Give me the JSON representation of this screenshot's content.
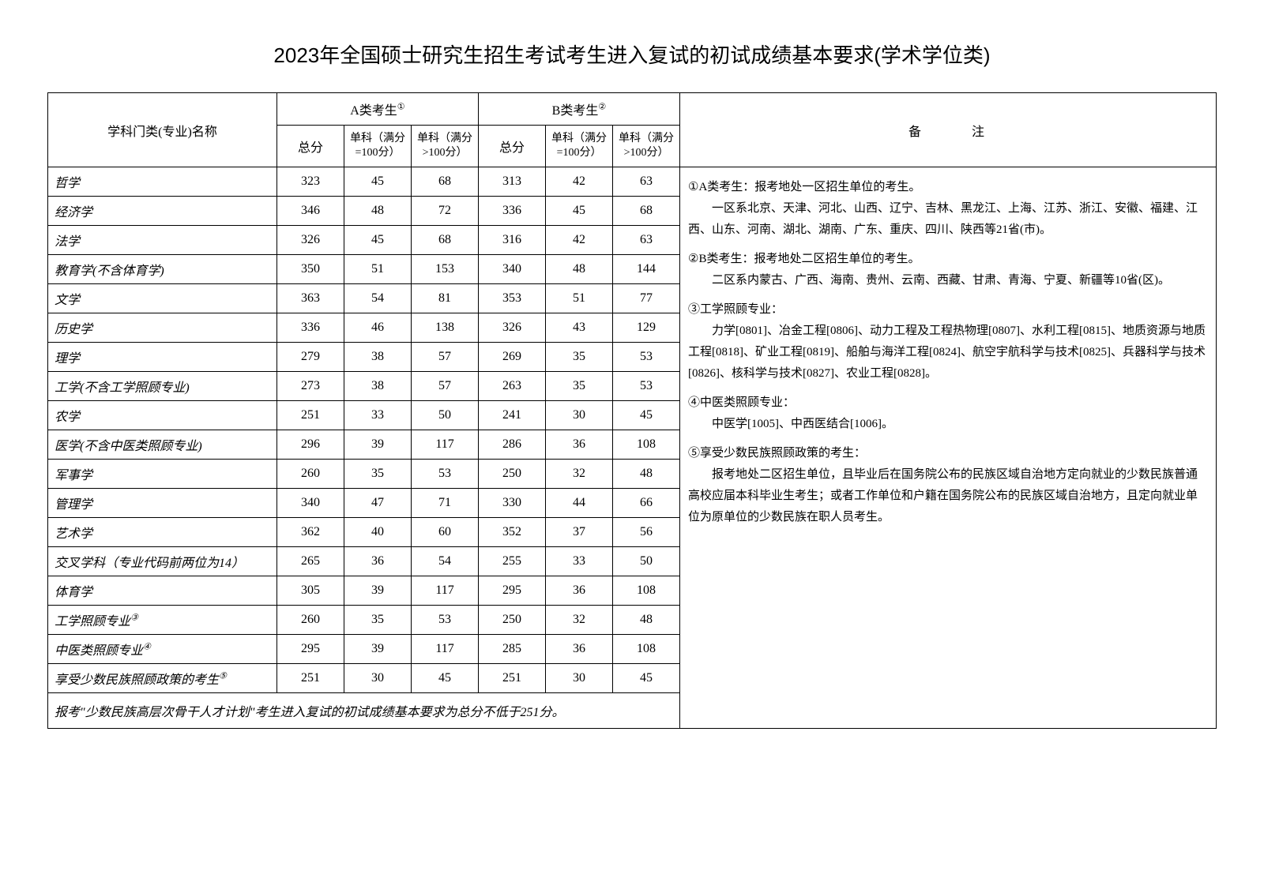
{
  "title": "2023年全国硕士研究生招生考试考生进入复试的初试成绩基本要求(学术学位类)",
  "headers": {
    "subject": "学科门类(专业)名称",
    "catA": "A类考生",
    "catA_sup": "①",
    "catB": "B类考生",
    "catB_sup": "②",
    "total": "总分",
    "sub100": "单科（满分=100分）",
    "sub_gt100": "单科（满分>100分）",
    "notes": "备注"
  },
  "rows": [
    {
      "name": "哲学",
      "a": [
        323,
        45,
        68
      ],
      "b": [
        313,
        42,
        63
      ]
    },
    {
      "name": "经济学",
      "a": [
        346,
        48,
        72
      ],
      "b": [
        336,
        45,
        68
      ]
    },
    {
      "name": "法学",
      "a": [
        326,
        45,
        68
      ],
      "b": [
        316,
        42,
        63
      ]
    },
    {
      "name": "教育学(不含体育学)",
      "a": [
        350,
        51,
        153
      ],
      "b": [
        340,
        48,
        144
      ]
    },
    {
      "name": "文学",
      "a": [
        363,
        54,
        81
      ],
      "b": [
        353,
        51,
        77
      ]
    },
    {
      "name": "历史学",
      "a": [
        336,
        46,
        138
      ],
      "b": [
        326,
        43,
        129
      ]
    },
    {
      "name": "理学",
      "a": [
        279,
        38,
        57
      ],
      "b": [
        269,
        35,
        53
      ]
    },
    {
      "name": "工学(不含工学照顾专业)",
      "a": [
        273,
        38,
        57
      ],
      "b": [
        263,
        35,
        53
      ]
    },
    {
      "name": "农学",
      "a": [
        251,
        33,
        50
      ],
      "b": [
        241,
        30,
        45
      ]
    },
    {
      "name": "医学(不含中医类照顾专业)",
      "a": [
        296,
        39,
        117
      ],
      "b": [
        286,
        36,
        108
      ]
    },
    {
      "name": "军事学",
      "a": [
        260,
        35,
        53
      ],
      "b": [
        250,
        32,
        48
      ]
    },
    {
      "name": "管理学",
      "a": [
        340,
        47,
        71
      ],
      "b": [
        330,
        44,
        66
      ]
    },
    {
      "name": "艺术学",
      "a": [
        362,
        40,
        60
      ],
      "b": [
        352,
        37,
        56
      ]
    },
    {
      "name": "交叉学科（专业代码前两位为14）",
      "a": [
        265,
        36,
        54
      ],
      "b": [
        255,
        33,
        50
      ]
    },
    {
      "name": "体育学",
      "a": [
        305,
        39,
        117
      ],
      "b": [
        295,
        36,
        108
      ]
    },
    {
      "name": "工学照顾专业",
      "sup": "③",
      "a": [
        260,
        35,
        53
      ],
      "b": [
        250,
        32,
        48
      ]
    },
    {
      "name": "中医类照顾专业",
      "sup": "④",
      "a": [
        295,
        39,
        117
      ],
      "b": [
        285,
        36,
        108
      ]
    },
    {
      "name": "享受少数民族照顾政策的考生",
      "sup": "⑤",
      "a": [
        251,
        30,
        45
      ],
      "b": [
        251,
        30,
        45
      ]
    }
  ],
  "footer_note": "报考\"少数民族高层次骨干人才计划\"考生进入复试的初试成绩基本要求为总分不低于251分。",
  "notes": {
    "p1_a": "①A类考生：报考地处一区招生单位的考生。",
    "p1_b": "一区系北京、天津、河北、山西、辽宁、吉林、黑龙江、上海、江苏、浙江、安徽、福建、江西、山东、河南、湖北、湖南、广东、重庆、四川、陕西等21省(市)。",
    "p2_a": "②B类考生：报考地处二区招生单位的考生。",
    "p2_b": "二区系内蒙古、广西、海南、贵州、云南、西藏、甘肃、青海、宁夏、新疆等10省(区)。",
    "p3_a": "③工学照顾专业：",
    "p3_b": "力学[0801]、冶金工程[0806]、动力工程及工程热物理[0807]、水利工程[0815]、地质资源与地质工程[0818]、矿业工程[0819]、船舶与海洋工程[0824]、航空宇航科学与技术[0825]、兵器科学与技术[0826]、核科学与技术[0827]、农业工程[0828]。",
    "p4_a": "④中医类照顾专业：",
    "p4_b": "中医学[1005]、中西医结合[1006]。",
    "p5_a": "⑤享受少数民族照顾政策的考生：",
    "p5_b": "报考地处二区招生单位，且毕业后在国务院公布的民族区域自治地方定向就业的少数民族普通高校应届本科毕业生考生；或者工作单位和户籍在国务院公布的民族区域自治地方，且定向就业单位为原单位的少数民族在职人员考生。"
  }
}
